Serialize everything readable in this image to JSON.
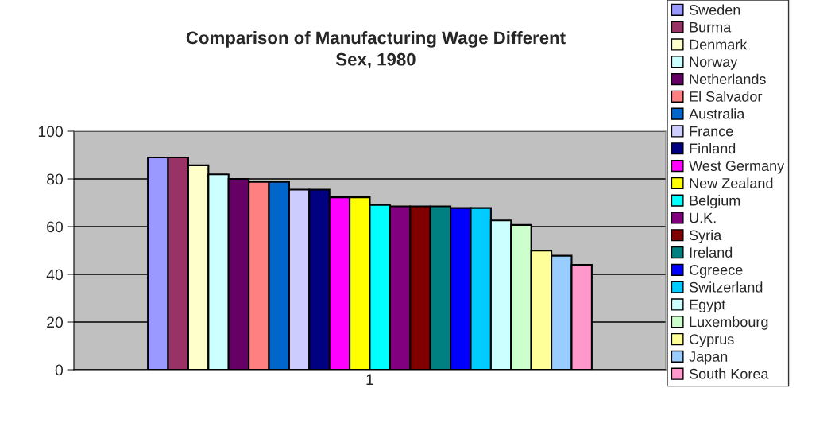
{
  "chart_data": {
    "type": "bar",
    "title": "Comparison of Manufacturing Wage Different\nSex, 1980",
    "categories": [
      "1"
    ],
    "series": [
      {
        "name": "Sweden",
        "color": "#9999ff",
        "values": [
          89.0
        ]
      },
      {
        "name": "Burma",
        "color": "#993366",
        "values": [
          89.0
        ]
      },
      {
        "name": "Denmark",
        "color": "#ffffcc",
        "values": [
          85.7
        ]
      },
      {
        "name": "Norway",
        "color": "#ccffff",
        "values": [
          81.9
        ]
      },
      {
        "name": "Netherlands",
        "color": "#660066",
        "values": [
          80.0
        ]
      },
      {
        "name": "El Salvador",
        "color": "#ff8080",
        "values": [
          78.8
        ]
      },
      {
        "name": "Australia",
        "color": "#0066cc",
        "values": [
          78.8
        ]
      },
      {
        "name": "France",
        "color": "#ccccff",
        "values": [
          75.5
        ]
      },
      {
        "name": "Finland",
        "color": "#000080",
        "values": [
          75.5
        ]
      },
      {
        "name": "West Germany",
        "color": "#ff00ff",
        "values": [
          72.3
        ]
      },
      {
        "name": "New Zealand",
        "color": "#ffff00",
        "values": [
          72.3
        ]
      },
      {
        "name": "Belgium",
        "color": "#00ffff",
        "values": [
          69.1
        ]
      },
      {
        "name": "U.K.",
        "color": "#800080",
        "values": [
          68.5
        ]
      },
      {
        "name": "Syria",
        "color": "#800000",
        "values": [
          68.5
        ]
      },
      {
        "name": "Ireland",
        "color": "#008080",
        "values": [
          68.5
        ]
      },
      {
        "name": "Cgreece",
        "color": "#0000ff",
        "values": [
          67.8
        ]
      },
      {
        "name": "Switzerland",
        "color": "#00ccff",
        "values": [
          67.8
        ]
      },
      {
        "name": "Egypt",
        "color": "#ccffff",
        "values": [
          62.6
        ]
      },
      {
        "name": "Luxembourg",
        "color": "#ccffcc",
        "values": [
          60.7
        ]
      },
      {
        "name": "Cyprus",
        "color": "#ffff99",
        "values": [
          49.9
        ]
      },
      {
        "name": "Japan",
        "color": "#99ccff",
        "values": [
          47.8
        ]
      },
      {
        "name": "South Korea",
        "color": "#ff99cc",
        "values": [
          44.0
        ]
      }
    ],
    "ylim": [
      0,
      100
    ],
    "yticks": [
      0,
      20,
      40,
      60,
      80,
      100
    ],
    "grid": "y",
    "legend": "right"
  }
}
